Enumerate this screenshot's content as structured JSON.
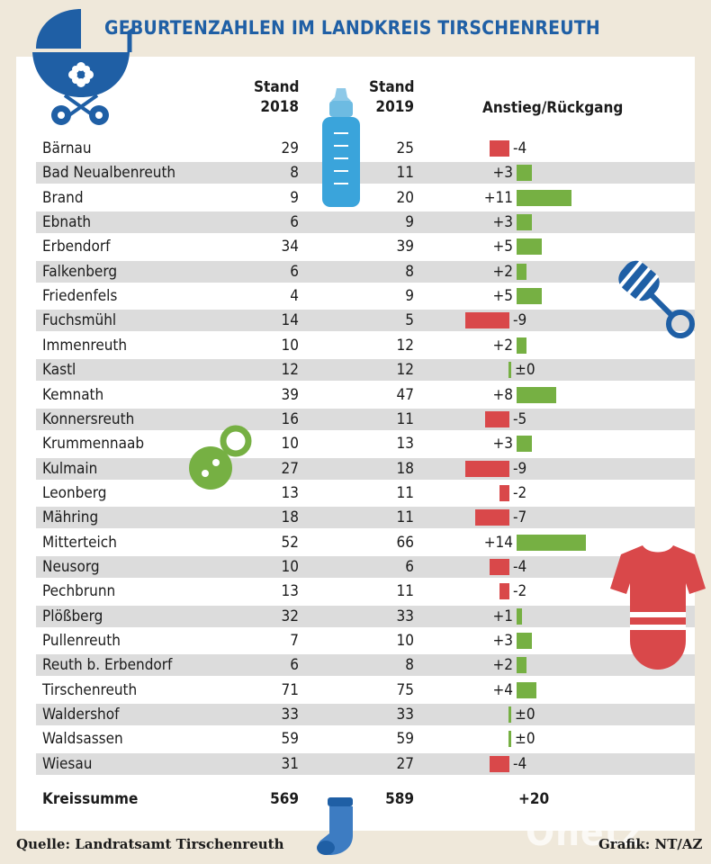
{
  "title": "GEBURTENZAHLEN IM LANDKREIS TIRSCHENREUTH",
  "headers": {
    "col2018": [
      "Stand",
      "2018"
    ],
    "col2019": [
      "Stand",
      "2019"
    ],
    "change": "Anstieg/Rückgang"
  },
  "colors": {
    "increase": "#76b043",
    "decrease": "#d9484a",
    "title": "#1f5fa5",
    "row_shade": "#dcdcdc"
  },
  "icons": [
    "baby-carriage-icon",
    "baby-bottle-icon",
    "rattle-icon",
    "pacifier-icon",
    "bodysuit-icon",
    "sock-icon"
  ],
  "chart_data": {
    "type": "table",
    "columns": [
      "",
      "Stand 2018",
      "Stand 2019",
      "Anstieg/Rückgang"
    ],
    "rows": [
      {
        "name": "Bärnau",
        "v2018": "29",
        "v2019": "25",
        "diff": -4,
        "diff_label": "-4"
      },
      {
        "name": "Bad Neualbenreuth",
        "v2018": "8",
        "v2019": "11",
        "diff": 3,
        "diff_label": "+3"
      },
      {
        "name": "Brand",
        "v2018": "9",
        "v2019": "20",
        "diff": 11,
        "diff_label": "+11"
      },
      {
        "name": "Ebnath",
        "v2018": "6",
        "v2019": "9",
        "diff": 3,
        "diff_label": "+3"
      },
      {
        "name": "Erbendorf",
        "v2018": "34",
        "v2019": "39",
        "diff": 5,
        "diff_label": "+5"
      },
      {
        "name": "Falkenberg",
        "v2018": "6",
        "v2019": "8",
        "diff": 2,
        "diff_label": "+2"
      },
      {
        "name": "Friedenfels",
        "v2018": "4",
        "v2019": "9",
        "diff": 5,
        "diff_label": "+5"
      },
      {
        "name": "Fuchsmühl",
        "v2018": "14",
        "v2019": "5",
        "diff": -9,
        "diff_label": "-9"
      },
      {
        "name": "Immenreuth",
        "v2018": "10",
        "v2019": "12",
        "diff": 2,
        "diff_label": "+2"
      },
      {
        "name": "Kastl",
        "v2018": "12",
        "v2019": "12",
        "diff": 0,
        "diff_label": "±0"
      },
      {
        "name": "Kemnath",
        "v2018": "39",
        "v2019": "47",
        "diff": 8,
        "diff_label": "+8"
      },
      {
        "name": "Konnersreuth",
        "v2018": "16",
        "v2019": "11",
        "diff": -5,
        "diff_label": "-5"
      },
      {
        "name": "Krummennaab",
        "v2018": "10",
        "v2019": "13",
        "diff": 3,
        "diff_label": "+3"
      },
      {
        "name": "Kulmain",
        "v2018": "27",
        "v2019": "18",
        "diff": -9,
        "diff_label": "-9"
      },
      {
        "name": "Leonberg",
        "v2018": "13",
        "v2019": "11",
        "diff": -2,
        "diff_label": "-2"
      },
      {
        "name": "Mähring",
        "v2018": "18",
        "v2019": "11",
        "diff": -7,
        "diff_label": "-7"
      },
      {
        "name": "Mitterteich",
        "v2018": "52",
        "v2019": "66",
        "diff": 14,
        "diff_label": "+14"
      },
      {
        "name": "Neusorg",
        "v2018": "10",
        "v2019": "6",
        "diff": -4,
        "diff_label": "-4"
      },
      {
        "name": "Pechbrunn",
        "v2018": "13",
        "v2019": "11",
        "diff": -2,
        "diff_label": "-2"
      },
      {
        "name": "Plößberg",
        "v2018": "32",
        "v2019": "33",
        "diff": 1,
        "diff_label": "+1"
      },
      {
        "name": "Pullenreuth",
        "v2018": "7",
        "v2019": "10",
        "diff": 3,
        "diff_label": "+3"
      },
      {
        "name": "Reuth b. Erbendorf",
        "v2018": "6",
        "v2019": "8",
        "diff": 2,
        "diff_label": "+2"
      },
      {
        "name": "Tirschenreuth",
        "v2018": "71",
        "v2019": "75",
        "diff": 4,
        "diff_label": "+4"
      },
      {
        "name": "Waldershof",
        "v2018": "33",
        "v2019": "33",
        "diff": 0,
        "diff_label": "±0"
      },
      {
        "name": "Waldsassen",
        "v2018": "59",
        "v2019": "59",
        "diff": 0,
        "diff_label": "±0"
      },
      {
        "name": "Wiesau",
        "v2018": "31",
        "v2019": "27",
        "diff": -4,
        "diff_label": "-4"
      }
    ],
    "total": {
      "name": "Kreissumme",
      "v2018": "569",
      "v2019": "589",
      "diff": 20,
      "diff_label": "+20"
    }
  },
  "source": "Quelle: Landratsamt Tirschenreuth",
  "credit": "Grafik: NT/AZ",
  "watermark": "Onetz"
}
